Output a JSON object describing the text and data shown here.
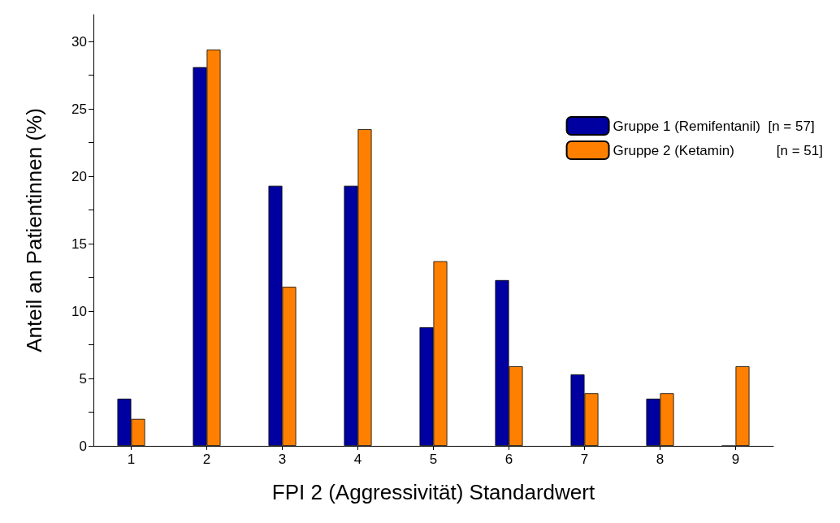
{
  "chart_data": {
    "type": "bar",
    "xlabel": "FPI 2 (Aggressivität) Standardwert",
    "ylabel": "Anteil an Patientinnen (%)",
    "categories": [
      "1",
      "2",
      "3",
      "4",
      "5",
      "6",
      "7",
      "8",
      "9"
    ],
    "series": [
      {
        "name": "Gruppe 1 (Remifentanil)  [n = 57]",
        "color": "#0000a0",
        "values": [
          3.5,
          28.1,
          19.3,
          19.3,
          8.8,
          12.3,
          5.3,
          3.5,
          0
        ]
      },
      {
        "name": "Gruppe 2 (Ketamin)           [n = 51]",
        "color": "#ff8000",
        "values": [
          2.0,
          29.4,
          11.8,
          23.5,
          13.7,
          5.9,
          3.9,
          3.9,
          5.9
        ]
      }
    ],
    "ylim": [
      0,
      32
    ],
    "yticks": [
      0,
      {
        "value": 2.5,
        "label": null
      },
      5,
      {
        "value": 7.5,
        "label": null
      },
      10,
      {
        "value": 12.5,
        "label": null
      },
      15,
      {
        "value": 17.5,
        "label": null
      },
      20,
      {
        "value": 22.5,
        "label": null
      },
      25,
      {
        "value": 27.5,
        "label": null
      },
      30
    ],
    "grid": false,
    "legend": "top right"
  }
}
